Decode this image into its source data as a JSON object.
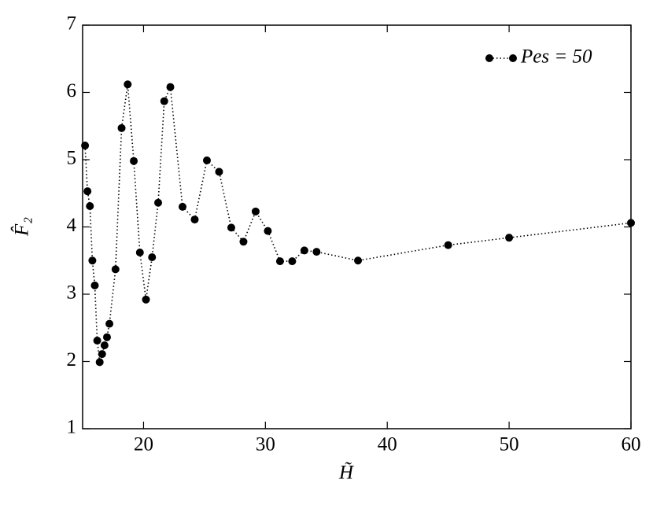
{
  "chart_data": {
    "type": "line",
    "x_label": "H̃",
    "y_label": "F̂₂",
    "x": [
      15.2,
      15.4,
      15.6,
      15.8,
      16.0,
      16.2,
      16.4,
      16.6,
      16.8,
      17.0,
      17.2,
      17.7,
      18.2,
      18.7,
      19.2,
      19.7,
      20.2,
      20.7,
      21.2,
      21.7,
      22.2,
      23.2,
      24.2,
      25.2,
      26.2,
      27.2,
      28.2,
      29.2,
      30.2,
      31.2,
      32.2,
      33.2,
      34.2,
      37.6,
      45,
      50,
      60
    ],
    "series": [
      {
        "name": "Pes = 50",
        "color": "#000000",
        "values": [
          5.21,
          4.53,
          4.31,
          3.5,
          3.13,
          2.31,
          1.99,
          2.11,
          2.24,
          2.36,
          2.56,
          3.37,
          5.47,
          6.12,
          4.98,
          3.62,
          2.92,
          3.55,
          4.36,
          5.87,
          6.08,
          4.3,
          4.11,
          4.99,
          4.82,
          3.99,
          3.78,
          4.23,
          3.94,
          3.49,
          3.49,
          3.65,
          3.63,
          3.5,
          3.73,
          3.84,
          4.06
        ]
      }
    ],
    "xlim": [
      15,
      60
    ],
    "xticks": [
      20,
      30,
      40,
      50,
      60
    ],
    "ylim": [
      1,
      7
    ],
    "yticks": [
      1,
      2,
      3,
      4,
      5,
      6,
      7
    ],
    "legend": "upper right"
  }
}
